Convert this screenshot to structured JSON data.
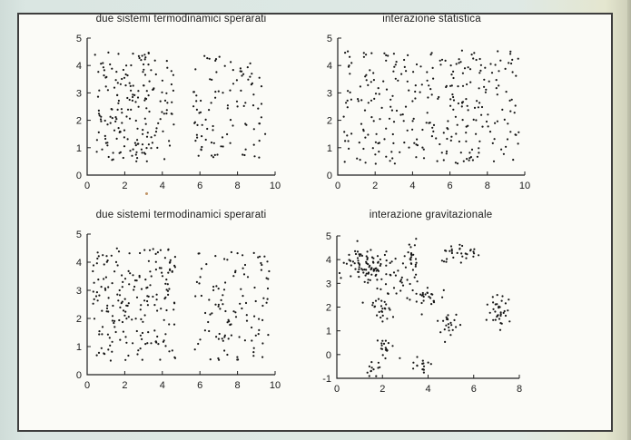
{
  "style": {
    "page_bg": "#dfe9e5",
    "paper": "#fbfbf7",
    "frame_border": "#3e3e3e",
    "axis_color": "#1f1f1f",
    "text_color": "#1b1b1b",
    "marker_color": "#161616"
  },
  "chart_data": [
    {
      "type": "scatter",
      "position": "top-left",
      "title": "due sistemi termodinamici sperarati",
      "xlim": [
        0,
        10
      ],
      "ylim": [
        0,
        5
      ],
      "xticks": [
        0,
        2,
        4,
        6,
        8,
        10
      ],
      "yticks": [
        0,
        1,
        2,
        3,
        4,
        5
      ],
      "grid": false,
      "legend": null,
      "marker": {
        "shape": "dot",
        "size": 2.2
      },
      "n_points": 290,
      "seed": 101,
      "uniform_regions": [
        {
          "x": [
            0.4,
            4.7
          ],
          "y": [
            0.5,
            4.5
          ],
          "n": 190
        },
        {
          "x": [
            5.6,
            9.5
          ],
          "y": [
            0.6,
            4.4
          ],
          "n": 100
        }
      ],
      "clusters": []
    },
    {
      "type": "scatter",
      "position": "top-right",
      "title": "interazione statistica",
      "xlim": [
        0,
        10
      ],
      "ylim": [
        0,
        5
      ],
      "xticks": [
        0,
        2,
        4,
        6,
        8,
        10
      ],
      "yticks": [
        0,
        1,
        2,
        3,
        4,
        5
      ],
      "grid": false,
      "legend": null,
      "marker": {
        "shape": "dot",
        "size": 2.2
      },
      "n_points": 300,
      "seed": 202,
      "uniform_regions": [
        {
          "x": [
            0.3,
            9.7
          ],
          "y": [
            0.4,
            4.55
          ],
          "n": 300
        }
      ],
      "clusters": []
    },
    {
      "type": "scatter",
      "position": "bottom-left",
      "title": "due sistemi termodinamici sperarati",
      "xlim": [
        0,
        10
      ],
      "ylim": [
        0,
        5
      ],
      "xticks": [
        0,
        2,
        4,
        6,
        8,
        10
      ],
      "yticks": [
        0,
        1,
        2,
        3,
        4,
        5
      ],
      "grid": false,
      "legend": null,
      "marker": {
        "shape": "dot",
        "size": 2.2
      },
      "n_points": 312,
      "seed": 303,
      "uniform_regions": [
        {
          "x": [
            0.3,
            4.7
          ],
          "y": [
            0.5,
            4.5
          ],
          "n": 200
        },
        {
          "x": [
            5.7,
            9.7
          ],
          "y": [
            0.5,
            4.4
          ],
          "n": 112
        }
      ],
      "clusters": []
    },
    {
      "type": "scatter",
      "position": "bottom-right",
      "title": "interazione gravitazionale",
      "xlim": [
        0,
        8
      ],
      "ylim": [
        -1,
        5
      ],
      "xticks": [
        0,
        2,
        4,
        6,
        8
      ],
      "yticks": [
        -1,
        0,
        1,
        2,
        3,
        4,
        5
      ],
      "grid": false,
      "legend": null,
      "marker": {
        "shape": "dot",
        "size": 2.2
      },
      "n_points": 315,
      "seed": 404,
      "uniform_regions": [],
      "clusters": [
        {
          "cx": 1.6,
          "cy": 3.6,
          "sx": 0.5,
          "sy": 0.32,
          "n": 70
        },
        {
          "cx": 0.95,
          "cy": 3.95,
          "sx": 0.3,
          "sy": 0.28,
          "n": 22
        },
        {
          "cx": 3.25,
          "cy": 3.95,
          "sx": 0.16,
          "sy": 0.55,
          "n": 28
        },
        {
          "cx": 5.3,
          "cy": 4.25,
          "sx": 0.45,
          "sy": 0.25,
          "n": 30
        },
        {
          "cx": 3.9,
          "cy": 2.45,
          "sx": 0.38,
          "sy": 0.2,
          "n": 26
        },
        {
          "cx": 2.0,
          "cy": 2.0,
          "sx": 0.3,
          "sy": 0.32,
          "n": 28
        },
        {
          "cx": 2.7,
          "cy": 2.9,
          "sx": 0.28,
          "sy": 0.22,
          "n": 10
        },
        {
          "cx": 7.1,
          "cy": 1.8,
          "sx": 0.3,
          "sy": 0.42,
          "n": 34
        },
        {
          "cx": 4.9,
          "cy": 1.3,
          "sx": 0.22,
          "sy": 0.34,
          "n": 22
        },
        {
          "cx": 2.15,
          "cy": 0.3,
          "sx": 0.26,
          "sy": 0.24,
          "n": 18
        },
        {
          "cx": 3.75,
          "cy": -0.35,
          "sx": 0.24,
          "sy": 0.2,
          "n": 15
        },
        {
          "cx": 1.55,
          "cy": -0.6,
          "sx": 0.2,
          "sy": 0.16,
          "n": 12
        }
      ]
    }
  ]
}
